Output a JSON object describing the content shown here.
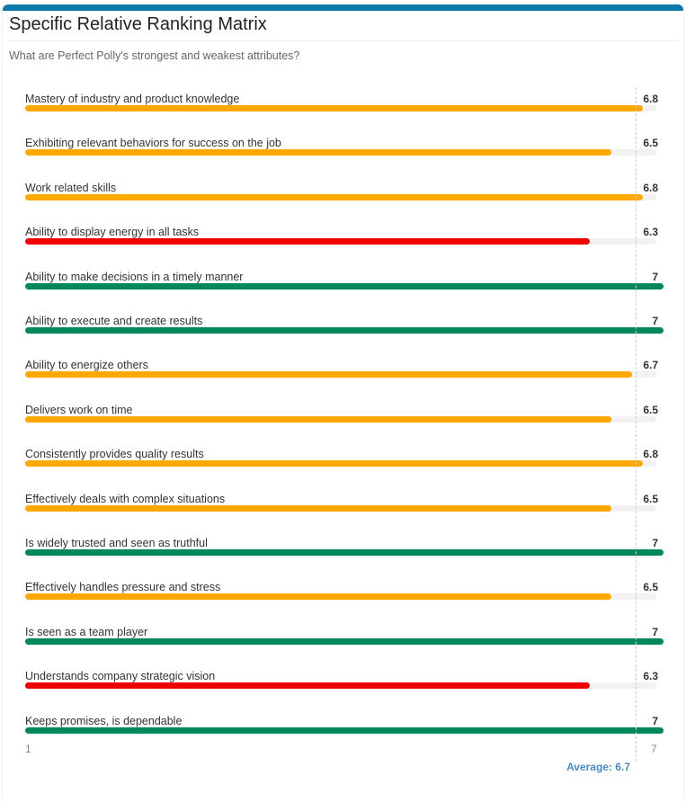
{
  "title": "Specific Relative Ranking Matrix",
  "subtitle": "What are Perfect Polly's strongest and weakest attributes?",
  "colors": {
    "high": "#00875a",
    "mid": "#ffa800",
    "low": "#f00000",
    "accent": "#0a7aa8"
  },
  "chart_data": {
    "type": "bar",
    "orientation": "horizontal",
    "xlim": [
      1,
      7
    ],
    "axis_min_label": "1",
    "axis_max_label": "7",
    "average": 6.7,
    "average_label": "Average: 6.7",
    "items": [
      {
        "label": "Mastery of industry and product knowledge",
        "value": 6.8,
        "display": "6.8",
        "level": "mid"
      },
      {
        "label": "Exhibiting relevant behaviors for success on the job",
        "value": 6.5,
        "display": "6.5",
        "level": "mid"
      },
      {
        "label": "Work related skills",
        "value": 6.8,
        "display": "6.8",
        "level": "mid"
      },
      {
        "label": "Ability to display energy in all tasks",
        "value": 6.3,
        "display": "6.3",
        "level": "low"
      },
      {
        "label": "Ability to make decisions in a timely manner",
        "value": 7,
        "display": "7",
        "level": "high"
      },
      {
        "label": "Ability to execute and create results",
        "value": 7,
        "display": "7",
        "level": "high"
      },
      {
        "label": "Ability to energize others",
        "value": 6.7,
        "display": "6.7",
        "level": "mid"
      },
      {
        "label": "Delivers work on time",
        "value": 6.5,
        "display": "6.5",
        "level": "mid"
      },
      {
        "label": "Consistently provides quality results",
        "value": 6.8,
        "display": "6.8",
        "level": "mid"
      },
      {
        "label": "Effectively deals with complex situations",
        "value": 6.5,
        "display": "6.5",
        "level": "mid"
      },
      {
        "label": "Is widely trusted and seen as truthful",
        "value": 7,
        "display": "7",
        "level": "high"
      },
      {
        "label": "Effectively handles pressure and stress",
        "value": 6.5,
        "display": "6.5",
        "level": "mid"
      },
      {
        "label": "Is seen as a team player",
        "value": 7,
        "display": "7",
        "level": "high"
      },
      {
        "label": "Understands company strategic vision",
        "value": 6.3,
        "display": "6.3",
        "level": "low"
      },
      {
        "label": "Keeps promises, is dependable",
        "value": 7,
        "display": "7",
        "level": "high"
      }
    ]
  }
}
